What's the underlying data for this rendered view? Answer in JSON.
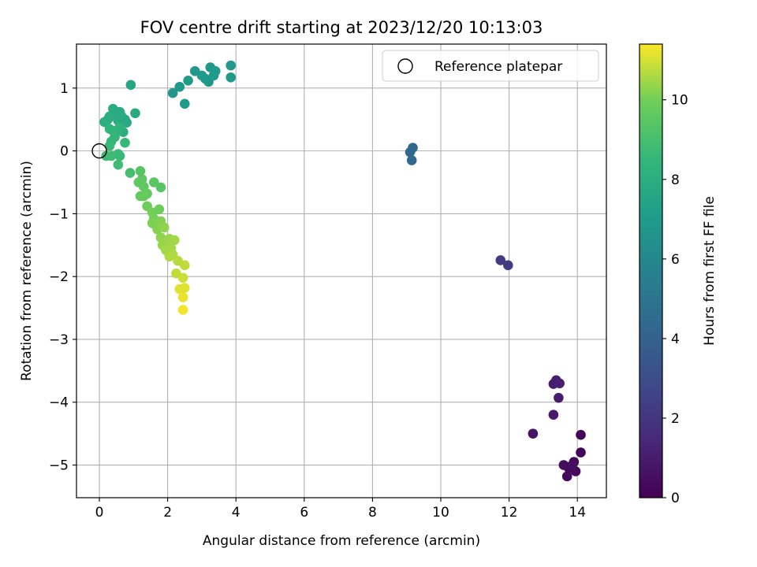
{
  "chart_data": {
    "type": "scatter",
    "title": "FOV centre drift starting at 2023/12/20 10:13:03",
    "xlabel": "Angular distance from reference (arcmin)",
    "ylabel": "Rotation from reference (arcmin)",
    "xlim": [
      -0.67,
      14.85
    ],
    "ylim": [
      -5.52,
      1.7
    ],
    "xticks": [
      0,
      2,
      4,
      6,
      8,
      10,
      12,
      14
    ],
    "yticks": [
      1,
      0,
      -1,
      -2,
      -3,
      -4,
      -5
    ],
    "grid": true,
    "legend": {
      "location": "top-right",
      "entries": [
        "Reference platepar"
      ]
    },
    "reference_point": {
      "x": 0,
      "y": 0
    },
    "colorbar": {
      "label": "Hours from first FF file",
      "min": 0,
      "max": 11.4,
      "ticks": [
        0,
        2,
        4,
        6,
        8,
        10
      ],
      "colormap": "viridis"
    },
    "points": [
      {
        "x": 14.1,
        "y": -4.52,
        "h": 0.1
      },
      {
        "x": 14.1,
        "y": -4.8,
        "h": 0.15
      },
      {
        "x": 13.9,
        "y": -4.95,
        "h": 0.2
      },
      {
        "x": 13.95,
        "y": -5.1,
        "h": 0.25
      },
      {
        "x": 13.75,
        "y": -5.05,
        "h": 0.3
      },
      {
        "x": 13.6,
        "y": -5.0,
        "h": 0.35
      },
      {
        "x": 13.7,
        "y": -5.18,
        "h": 0.4
      },
      {
        "x": 13.85,
        "y": -5.0,
        "h": 0.45
      },
      {
        "x": 12.7,
        "y": -4.5,
        "h": 0.7
      },
      {
        "x": 13.3,
        "y": -4.2,
        "h": 0.9
      },
      {
        "x": 13.45,
        "y": -3.93,
        "h": 1.0
      },
      {
        "x": 13.3,
        "y": -3.71,
        "h": 1.05
      },
      {
        "x": 13.38,
        "y": -3.65,
        "h": 1.1
      },
      {
        "x": 13.48,
        "y": -3.7,
        "h": 1.15
      },
      {
        "x": 11.75,
        "y": -1.74,
        "h": 2.2
      },
      {
        "x": 11.97,
        "y": -1.82,
        "h": 2.3
      },
      {
        "x": 9.1,
        "y": -0.02,
        "h": 4.3
      },
      {
        "x": 9.18,
        "y": 0.05,
        "h": 4.35
      },
      {
        "x": 9.15,
        "y": -0.15,
        "h": 4.4
      },
      {
        "x": 2.15,
        "y": 0.92,
        "h": 6.8
      },
      {
        "x": 2.35,
        "y": 1.02,
        "h": 6.9
      },
      {
        "x": 2.5,
        "y": 0.75,
        "h": 6.9
      },
      {
        "x": 2.6,
        "y": 1.12,
        "h": 7.0
      },
      {
        "x": 2.8,
        "y": 1.27,
        "h": 6.8
      },
      {
        "x": 3.0,
        "y": 1.2,
        "h": 6.9
      },
      {
        "x": 3.1,
        "y": 1.15,
        "h": 6.9
      },
      {
        "x": 3.2,
        "y": 1.1,
        "h": 6.85
      },
      {
        "x": 3.25,
        "y": 1.33,
        "h": 6.85
      },
      {
        "x": 3.35,
        "y": 1.2,
        "h": 6.9
      },
      {
        "x": 3.4,
        "y": 1.27,
        "h": 6.9
      },
      {
        "x": 3.85,
        "y": 1.36,
        "h": 6.8
      },
      {
        "x": 3.85,
        "y": 1.17,
        "h": 6.85
      },
      {
        "x": 0.92,
        "y": 1.05,
        "h": 7.6
      },
      {
        "x": 1.05,
        "y": 0.6,
        "h": 7.8
      },
      {
        "x": 0.15,
        "y": 0.46,
        "h": 8.0
      },
      {
        "x": 0.25,
        "y": 0.5,
        "h": 8.1
      },
      {
        "x": 0.3,
        "y": 0.55,
        "h": 7.9
      },
      {
        "x": 0.4,
        "y": 0.67,
        "h": 7.9
      },
      {
        "x": 0.45,
        "y": 0.55,
        "h": 8.0
      },
      {
        "x": 0.5,
        "y": 0.62,
        "h": 7.8
      },
      {
        "x": 0.55,
        "y": 0.48,
        "h": 7.9
      },
      {
        "x": 0.6,
        "y": 0.62,
        "h": 7.7
      },
      {
        "x": 0.65,
        "y": 0.55,
        "h": 7.9
      },
      {
        "x": 0.7,
        "y": 0.45,
        "h": 7.6
      },
      {
        "x": 0.75,
        "y": 0.5,
        "h": 7.8
      },
      {
        "x": 0.8,
        "y": 0.45,
        "h": 7.7
      },
      {
        "x": 0.7,
        "y": 0.3,
        "h": 8.0
      },
      {
        "x": 0.6,
        "y": 0.38,
        "h": 8.2
      },
      {
        "x": 0.5,
        "y": 0.3,
        "h": 8.3
      },
      {
        "x": 0.4,
        "y": 0.32,
        "h": 8.4
      },
      {
        "x": 0.3,
        "y": 0.35,
        "h": 8.3
      },
      {
        "x": 0.45,
        "y": 0.22,
        "h": 8.5
      },
      {
        "x": 0.35,
        "y": 0.15,
        "h": 8.5
      },
      {
        "x": 0.75,
        "y": 0.13,
        "h": 8.6
      },
      {
        "x": 0.3,
        "y": 0.08,
        "h": 8.6
      },
      {
        "x": 0.2,
        "y": -0.08,
        "h": 8.7
      },
      {
        "x": 0.35,
        "y": -0.08,
        "h": 8.8
      },
      {
        "x": 0.55,
        "y": -0.05,
        "h": 8.7
      },
      {
        "x": 0.6,
        "y": -0.08,
        "h": 8.6
      },
      {
        "x": 0.55,
        "y": -0.22,
        "h": 8.8
      },
      {
        "x": 0.9,
        "y": -0.35,
        "h": 9.0
      },
      {
        "x": 1.2,
        "y": -0.32,
        "h": 9.4
      },
      {
        "x": 1.25,
        "y": -0.45,
        "h": 9.5
      },
      {
        "x": 1.15,
        "y": -0.5,
        "h": 9.6
      },
      {
        "x": 1.3,
        "y": -0.57,
        "h": 9.6
      },
      {
        "x": 1.2,
        "y": -0.72,
        "h": 9.7
      },
      {
        "x": 1.4,
        "y": -0.68,
        "h": 9.7
      },
      {
        "x": 1.3,
        "y": -0.72,
        "h": 9.8
      },
      {
        "x": 1.6,
        "y": -0.5,
        "h": 9.5
      },
      {
        "x": 1.8,
        "y": -0.58,
        "h": 9.4
      },
      {
        "x": 1.4,
        "y": -0.88,
        "h": 9.9
      },
      {
        "x": 1.55,
        "y": -0.98,
        "h": 10.0
      },
      {
        "x": 1.6,
        "y": -1.08,
        "h": 10.0
      },
      {
        "x": 1.75,
        "y": -0.93,
        "h": 9.9
      },
      {
        "x": 1.55,
        "y": -1.15,
        "h": 10.1
      },
      {
        "x": 1.65,
        "y": -1.18,
        "h": 10.1
      },
      {
        "x": 1.8,
        "y": -1.12,
        "h": 10.2
      },
      {
        "x": 1.7,
        "y": -1.25,
        "h": 10.2
      },
      {
        "x": 1.9,
        "y": -1.22,
        "h": 10.3
      },
      {
        "x": 1.8,
        "y": -1.38,
        "h": 10.3
      },
      {
        "x": 1.85,
        "y": -1.5,
        "h": 10.4
      },
      {
        "x": 1.95,
        "y": -1.45,
        "h": 10.4
      },
      {
        "x": 2.05,
        "y": -1.4,
        "h": 10.4
      },
      {
        "x": 2.2,
        "y": -1.42,
        "h": 10.5
      },
      {
        "x": 1.95,
        "y": -1.58,
        "h": 10.5
      },
      {
        "x": 2.1,
        "y": -1.55,
        "h": 10.5
      },
      {
        "x": 2.05,
        "y": -1.68,
        "h": 10.6
      },
      {
        "x": 2.15,
        "y": -1.65,
        "h": 10.6
      },
      {
        "x": 2.3,
        "y": -1.75,
        "h": 10.7
      },
      {
        "x": 2.5,
        "y": -1.82,
        "h": 10.8
      },
      {
        "x": 2.25,
        "y": -1.95,
        "h": 10.8
      },
      {
        "x": 2.45,
        "y": -2.02,
        "h": 10.9
      },
      {
        "x": 2.35,
        "y": -2.2,
        "h": 11.1
      },
      {
        "x": 2.5,
        "y": -2.18,
        "h": 11.1
      },
      {
        "x": 2.45,
        "y": -2.33,
        "h": 11.2
      },
      {
        "x": 2.45,
        "y": -2.53,
        "h": 11.3
      }
    ]
  }
}
